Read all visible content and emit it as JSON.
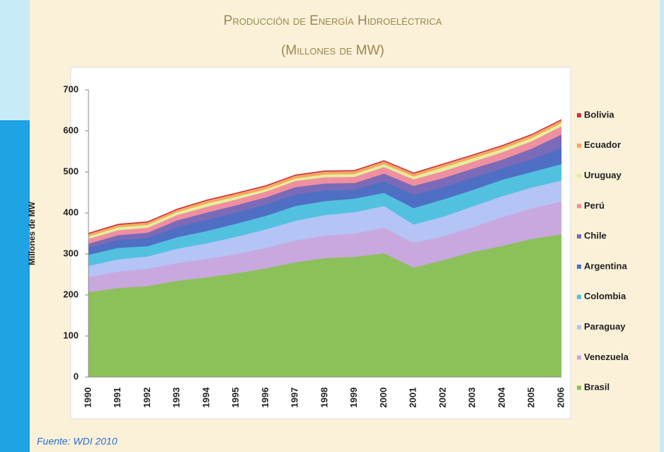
{
  "chart_data": {
    "type": "stacked_area",
    "title": "Producción de Energía Hidroeléctrica",
    "subtitle": "(Millones de MW)",
    "y_label": "Millones de MW",
    "source": "Fuente: WDI 2010",
    "categories": [
      "1990",
      "1991",
      "1992",
      "1993",
      "1994",
      "1995",
      "1996",
      "1997",
      "1998",
      "1999",
      "2000",
      "2001",
      "2002",
      "2003",
      "2004",
      "2005",
      "2006"
    ],
    "ylim": [
      0,
      700
    ],
    "yticks": [
      0,
      100,
      200,
      300,
      400,
      500,
      600,
      700
    ],
    "grid": false,
    "series": [
      {
        "name": "Brasil",
        "color": "#8cc05a",
        "values": [
          207,
          217,
          222,
          235,
          243,
          253,
          265,
          280,
          290,
          293,
          302,
          267,
          285,
          305,
          320,
          337,
          348
        ]
      },
      {
        "name": "Venezuela",
        "color": "#c9a8e0",
        "values": [
          37,
          40,
          42,
          43,
          45,
          47,
          50,
          53,
          55,
          57,
          62,
          60,
          58,
          60,
          70,
          74,
          80
        ]
      },
      {
        "name": "Paraguay",
        "color": "#b4c4f5",
        "values": [
          27,
          30,
          30,
          35,
          38,
          42,
          45,
          48,
          50,
          52,
          53,
          45,
          48,
          51,
          51,
          51,
          51
        ]
      },
      {
        "name": "Colombia",
        "color": "#52c1e0",
        "values": [
          27,
          28,
          25,
          28,
          30,
          32,
          33,
          36,
          34,
          33,
          32,
          40,
          42,
          40,
          40,
          38,
          40
        ]
      },
      {
        "name": "Argentina",
        "color": "#4f6fc4",
        "values": [
          17,
          19,
          20,
          25,
          27,
          27,
          28,
          28,
          26,
          22,
          28,
          33,
          30,
          30,
          28,
          31,
          40
        ]
      },
      {
        "name": "Chile",
        "color": "#7a6ab8",
        "values": [
          10,
          12,
          13,
          16,
          18,
          18,
          17,
          18,
          17,
          16,
          19,
          21,
          22,
          22,
          21,
          26,
          32
        ]
      },
      {
        "name": "Perú",
        "color": "#f08fa0",
        "values": [
          12,
          12,
          12,
          13,
          14,
          14,
          14,
          15,
          15,
          15,
          16,
          16,
          17,
          17,
          18,
          18,
          20
        ]
      },
      {
        "name": "Uruguay",
        "color": "#e4ee9e",
        "values": [
          6,
          7,
          7,
          7,
          8,
          7,
          6,
          6,
          7,
          7,
          7,
          7,
          9,
          8,
          8,
          8,
          8
        ]
      },
      {
        "name": "Ecuador",
        "color": "#f4a860",
        "values": [
          6,
          6,
          6,
          6,
          7,
          7,
          7,
          7,
          7,
          7,
          7,
          7,
          7,
          7,
          7,
          7,
          7
        ]
      },
      {
        "name": "Bolivia",
        "color": "#d03040",
        "values": [
          2,
          2,
          2,
          2,
          2,
          2,
          2,
          2,
          2,
          2,
          2,
          2,
          2,
          2,
          2,
          2,
          2
        ]
      }
    ]
  }
}
